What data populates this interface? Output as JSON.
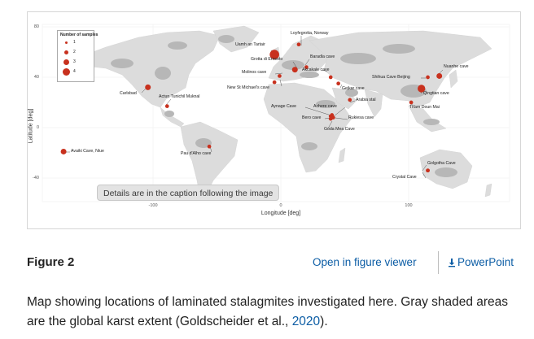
{
  "map": {
    "y_axis_label": "Latitude [deg]",
    "x_axis_label": "Longitude [deg]",
    "y_ticks": [
      "80",
      "40",
      "0",
      "-40"
    ],
    "x_ticks": [
      "-100",
      "0",
      "100"
    ],
    "legend": {
      "title": "Number of samples",
      "items": [
        {
          "label": "1",
          "samples": 1
        },
        {
          "label": "2",
          "samples": 2
        },
        {
          "label": "3",
          "samples": 3
        },
        {
          "label": "4",
          "samples": 4
        }
      ]
    },
    "marker_color": "#c8311e",
    "karst_color": "#b7b7b7",
    "land_color": "#dcdcdc",
    "caves": [
      {
        "name": "Loyfegrotta, Norway",
        "lon": 14,
        "lat": 66,
        "samples": 1
      },
      {
        "name": "Uamh an Tartair",
        "lon": -5,
        "lat": 58,
        "samples": 4
      },
      {
        "name": "Grotta di Ernesto",
        "lon": 11,
        "lat": 46,
        "samples": 2
      },
      {
        "name": "Baradla cave",
        "lon": 20,
        "lat": 48,
        "samples": 1
      },
      {
        "name": "Molinos cave",
        "lon": -1,
        "lat": 41,
        "samples": 1
      },
      {
        "name": "Akcakale cave",
        "lon": 39,
        "lat": 40,
        "samples": 1
      },
      {
        "name": "New St Michael's cave",
        "lon": -5,
        "lat": 36,
        "samples": 1
      },
      {
        "name": "Gejkar cave",
        "lon": 45,
        "lat": 35,
        "samples": 1
      },
      {
        "name": "Shihua Cave Beijing",
        "lon": 115,
        "lat": 40,
        "samples": 1
      },
      {
        "name": "Nuanhe cave",
        "lon": 124,
        "lat": 41,
        "samples": 2
      },
      {
        "name": "Qingtian cave",
        "lon": 110,
        "lat": 31,
        "samples": 3
      },
      {
        "name": "Arabia stal",
        "lon": 54,
        "lat": 22,
        "samples": 1
      },
      {
        "name": "Tham Doun Mai",
        "lon": 102,
        "lat": 20,
        "samples": 1
      },
      {
        "name": "Aynage Cave",
        "lon": 40,
        "lat": 10,
        "samples": 1
      },
      {
        "name": "Achere cave",
        "lon": 39,
        "lat": 9,
        "samples": 1
      },
      {
        "name": "Bero cave",
        "lon": 40,
        "lat": 8,
        "samples": 1
      },
      {
        "name": "Rukiesa cave",
        "lon": 41,
        "lat": 8,
        "samples": 1
      },
      {
        "name": "Goda Mea Cave",
        "lon": 39,
        "lat": 7,
        "samples": 1
      },
      {
        "name": "Carlsbad",
        "lon": -104,
        "lat": 32,
        "samples": 2
      },
      {
        "name": "Actun Tunichil Muknal",
        "lon": -89,
        "lat": 17,
        "samples": 1
      },
      {
        "name": "Pau d'Alho cave",
        "lon": -56,
        "lat": -15,
        "samples": 1
      },
      {
        "name": "Avaiki Cave, Niue",
        "lon": -170,
        "lat": -19,
        "samples": 2
      },
      {
        "name": "Golgotha Cave",
        "lon": 115,
        "lat": -34,
        "samples": 1
      },
      {
        "name": "Crystal Cave",
        "lon": 115,
        "lat": -34,
        "samples": 1
      }
    ]
  },
  "details_button": "Details are in the caption following the image",
  "figure_title": "Figure 2",
  "open_viewer": "Open in figure viewer",
  "powerpoint": "PowerPoint",
  "caption_text": "Map showing locations of laminated stalagmites investigated here. Gray shaded areas are the global karst extent (Goldscheider et al., ",
  "caption_ref": "2020",
  "caption_end": ")."
}
